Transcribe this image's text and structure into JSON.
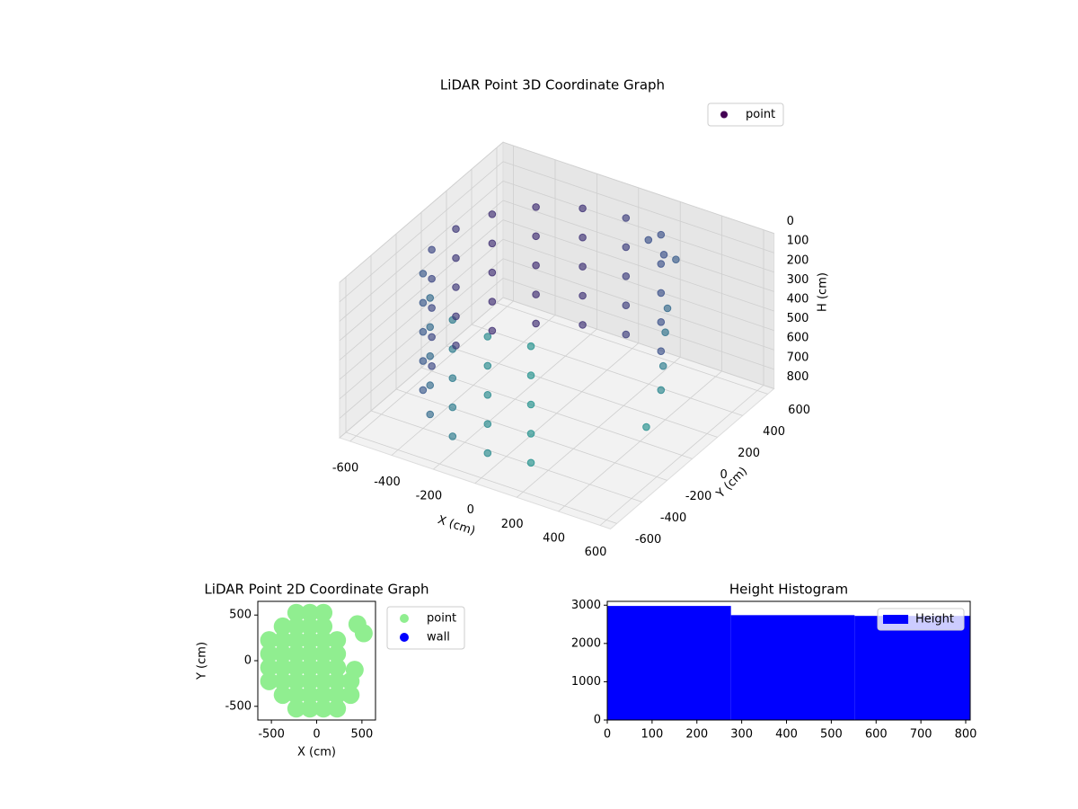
{
  "chart_data": [
    {
      "type": "scatter3d",
      "title": "LiDAR Point 3D Coordinate Graph",
      "xlabel": "X (cm)",
      "ylabel": "Y (cm)",
      "zlabel": "H (cm)",
      "xlim": [
        -650,
        650
      ],
      "ylim": [
        -650,
        650
      ],
      "zlim": [
        0,
        800
      ],
      "z_inverted": true,
      "xticks": [
        -600,
        -400,
        -200,
        0,
        200,
        400,
        600
      ],
      "yticks": [
        -600,
        -400,
        -200,
        0,
        200,
        400,
        600
      ],
      "zticks": [
        0,
        100,
        200,
        300,
        400,
        500,
        600,
        700,
        800
      ],
      "cmap": "viridis",
      "grid": true,
      "legend": "upper right",
      "series": [
        {
          "name": "point",
          "color": "#440154",
          "x": [
            188,
            0,
            -188,
            -354,
            -476,
            -542,
            -542,
            -476,
            -354,
            -188,
            0,
            188,
            188,
            0,
            -188,
            -354,
            -476,
            -542,
            -542,
            -476,
            -354,
            -188,
            0,
            188,
            188,
            0,
            -188,
            -354,
            -476,
            -542,
            -542,
            -476,
            -354,
            -188,
            0,
            188,
            188,
            0,
            -188,
            -354,
            -476,
            -542,
            -542,
            -476,
            -354,
            -188,
            0,
            188,
            188,
            0,
            -188,
            -354,
            -476,
            -542,
            -542,
            -476,
            -354,
            -188,
            0,
            188,
            300,
            350,
            400,
            450,
            500,
            520,
            150,
            200
          ],
          "y": [
            517,
            550,
            517,
            421,
            275,
            96,
            -96,
            -275,
            -421,
            -517,
            -550,
            -517,
            517,
            550,
            517,
            421,
            275,
            96,
            -96,
            -275,
            -421,
            -517,
            -550,
            -517,
            517,
            550,
            517,
            421,
            275,
            96,
            -96,
            -275,
            -421,
            -517,
            -550,
            -517,
            517,
            550,
            517,
            421,
            275,
            96,
            -96,
            -275,
            -421,
            -517,
            -550,
            -517,
            517,
            550,
            517,
            421,
            275,
            96,
            -96,
            -275,
            -421,
            -517,
            -550,
            -517,
            450,
            300,
            200,
            100,
            0,
            -150,
            480,
            520
          ],
          "h": [
            100,
            100,
            100,
            100,
            100,
            100,
            100,
            100,
            100,
            100,
            100,
            100,
            250,
            250,
            250,
            250,
            250,
            250,
            250,
            250,
            250,
            250,
            250,
            250,
            400,
            400,
            400,
            400,
            400,
            400,
            400,
            400,
            400,
            400,
            400,
            400,
            550,
            550,
            550,
            550,
            550,
            550,
            550,
            550,
            550,
            550,
            550,
            550,
            700,
            700,
            700,
            700,
            700,
            700,
            700,
            700,
            700,
            700,
            700,
            700,
            150,
            300,
            350,
            450,
            500,
            600,
            120,
            200
          ]
        }
      ]
    },
    {
      "type": "scatter",
      "title": "LiDAR Point 2D Coordinate Graph",
      "xlabel": "X (cm)",
      "ylabel": "Y (cm)",
      "xlim": [
        -650,
        650
      ],
      "ylim": [
        -650,
        650
      ],
      "xticks": [
        -500,
        0,
        500
      ],
      "yticks": [
        -500,
        0,
        500
      ],
      "legend": "outside right",
      "series": [
        {
          "name": "point",
          "color": "#90ee90",
          "x": [
            -525,
            -525,
            -525,
            -525,
            -375,
            -375,
            -375,
            -375,
            -375,
            -375,
            -225,
            -225,
            -225,
            -225,
            -225,
            -225,
            -225,
            -225,
            -75,
            -75,
            -75,
            -75,
            -75,
            -75,
            -75,
            -75,
            75,
            75,
            75,
            75,
            75,
            75,
            75,
            75,
            225,
            225,
            225,
            225,
            225,
            225,
            375,
            375,
            450,
            520,
            420
          ],
          "y": [
            -225,
            -75,
            75,
            225,
            -375,
            -225,
            -75,
            75,
            225,
            375,
            -525,
            -375,
            -225,
            -75,
            75,
            225,
            375,
            525,
            -525,
            -375,
            -225,
            -75,
            75,
            225,
            375,
            525,
            -525,
            -375,
            -225,
            -75,
            75,
            225,
            375,
            525,
            -525,
            -375,
            -225,
            -75,
            75,
            225,
            -375,
            -225,
            400,
            300,
            -100
          ]
        },
        {
          "name": "wall",
          "color": "#0000ff",
          "x": [],
          "y": []
        }
      ]
    },
    {
      "type": "histogram",
      "title": "Height Histogram",
      "name": "Height",
      "color": "#0000ff",
      "bins": [
        0,
        276,
        552,
        810
      ],
      "values": [
        2980,
        2740,
        2720
      ],
      "xlim": [
        0,
        810
      ],
      "ylim": [
        0,
        3100
      ],
      "xticks": [
        0,
        100,
        200,
        300,
        400,
        500,
        600,
        700,
        800
      ],
      "yticks": [
        0,
        1000,
        2000,
        3000
      ],
      "legend": "upper right"
    }
  ]
}
